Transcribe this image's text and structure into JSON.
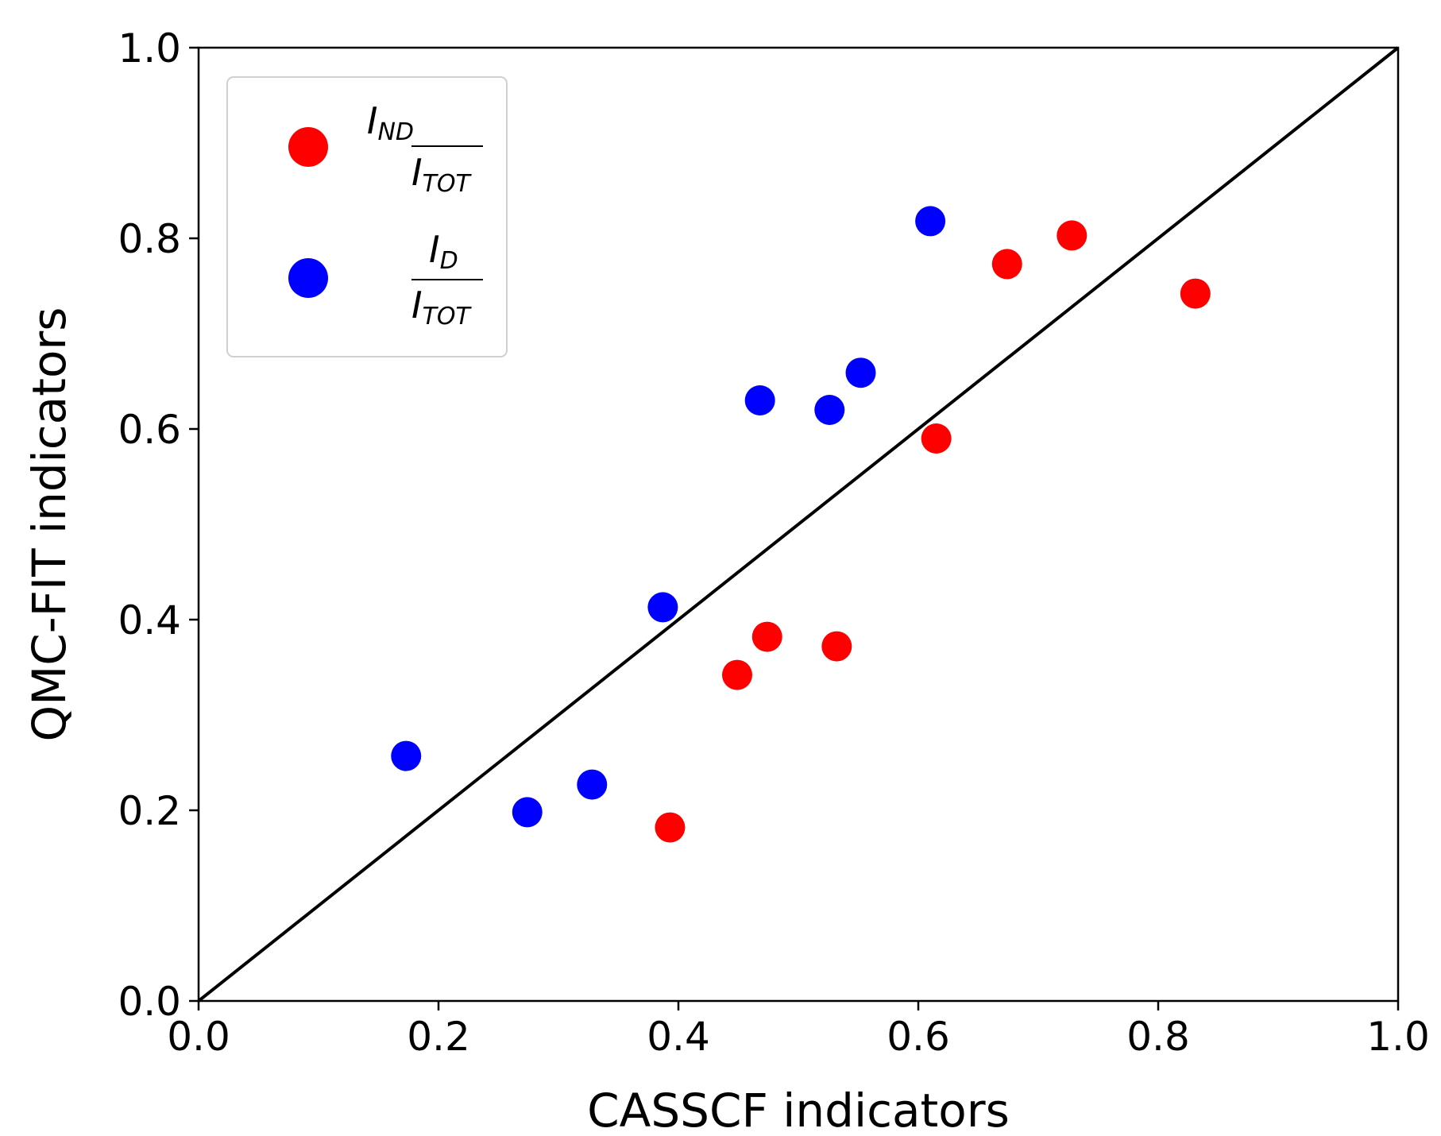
{
  "chart_data": {
    "type": "scatter",
    "title": "",
    "xlabel": "CASSCF indicators",
    "ylabel": "QMC-FIT indicators",
    "xlim": [
      0.0,
      1.0
    ],
    "ylim": [
      0.0,
      1.0
    ],
    "xticks": [
      "0.0",
      "0.2",
      "0.4",
      "0.6",
      "0.8",
      "1.0"
    ],
    "yticks": [
      "0.0",
      "0.2",
      "0.4",
      "0.6",
      "0.8",
      "1.0"
    ],
    "grid": false,
    "legend_position": "top-left",
    "reference_line": {
      "label": "y = x",
      "points": [
        [
          0.0,
          0.0
        ],
        [
          1.0,
          1.0
        ]
      ],
      "color": "#000000"
    },
    "series": [
      {
        "name": "I_ND / I_TOT",
        "legend": {
          "num": "I",
          "num_sub": "ND",
          "den": "I",
          "den_sub": "TOT"
        },
        "color": "#ff0000",
        "points": [
          [
            0.393,
            0.182
          ],
          [
            0.449,
            0.342
          ],
          [
            0.474,
            0.382
          ],
          [
            0.532,
            0.372
          ],
          [
            0.615,
            0.59
          ],
          [
            0.674,
            0.773
          ],
          [
            0.728,
            0.803
          ],
          [
            0.831,
            0.742
          ]
        ]
      },
      {
        "name": "I_D / I_TOT",
        "legend": {
          "num": "I",
          "num_sub": "D",
          "den": "I",
          "den_sub": "TOT"
        },
        "color": "#0000ff",
        "points": [
          [
            0.173,
            0.257
          ],
          [
            0.274,
            0.198
          ],
          [
            0.328,
            0.227
          ],
          [
            0.387,
            0.413
          ],
          [
            0.468,
            0.63
          ],
          [
            0.526,
            0.62
          ],
          [
            0.552,
            0.659
          ],
          [
            0.61,
            0.818
          ]
        ]
      }
    ]
  }
}
